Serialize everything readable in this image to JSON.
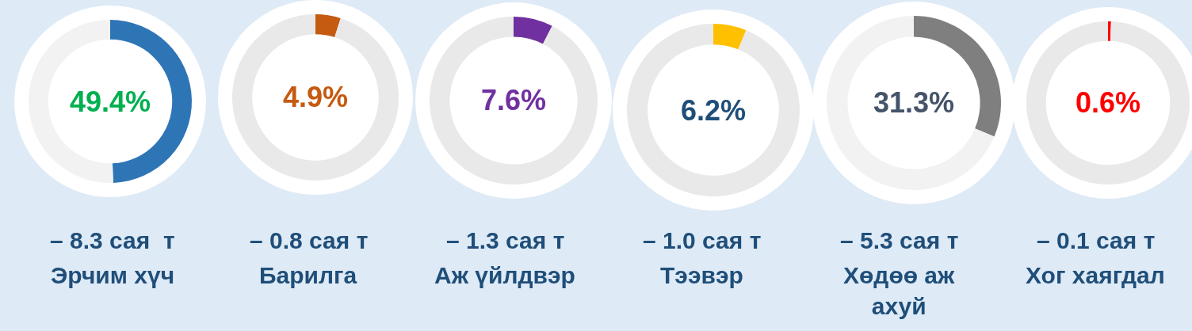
{
  "chart_data": [
    {
      "type": "donut",
      "categories": [
        null,
        null
      ],
      "values": [
        49.4,
        50.6
      ],
      "colors": [
        "#2e75b6",
        "#f2f2f2"
      ],
      "value_labels": [
        "49.4%",
        null
      ],
      "annotations": [
        "– 8.3 сая  т"
      ],
      "xlabel": "Эрчим хүч"
    },
    {
      "type": "donut",
      "categories": [
        null,
        null
      ],
      "values": [
        4.9,
        95.1
      ],
      "colors": [
        "#c55a11",
        "#e9e9e9"
      ],
      "value_labels": [
        "4.9%",
        null
      ],
      "annotations": [
        "– 0.8 сая т"
      ],
      "xlabel": "Барилга"
    },
    {
      "type": "donut",
      "categories": [
        null,
        null
      ],
      "values": [
        7.6,
        92.4
      ],
      "colors": [
        "#7030a0",
        "#e9e9e9"
      ],
      "value_labels": [
        "7.6%",
        null
      ],
      "annotations": [
        "– 1.3 сая т"
      ],
      "xlabel": "Аж үйлдвэр"
    },
    {
      "type": "donut",
      "categories": [
        null,
        null
      ],
      "values": [
        6.2,
        93.8
      ],
      "colors": [
        "#ffc000",
        "#e9e9e9"
      ],
      "value_labels": [
        "6.2%",
        null
      ],
      "annotations": [
        "– 1.0 сая т"
      ],
      "xlabel": "Тээвэр"
    },
    {
      "type": "donut",
      "categories": [
        null,
        null
      ],
      "values": [
        31.3,
        68.7
      ],
      "colors": [
        "#7f7f7f",
        "#f2f2f2"
      ],
      "value_labels": [
        "31.3%",
        null
      ],
      "annotations": [
        "– 5.3 сая т"
      ],
      "xlabel": "Хөдөө аж ахуй"
    },
    {
      "type": "donut",
      "categories": [
        null,
        null
      ],
      "values": [
        0.6,
        99.4
      ],
      "colors": [
        "#ff0000",
        "#e9e9e9"
      ],
      "value_labels": [
        "0.6%",
        null
      ],
      "annotations": [
        "– 0.1 сая т"
      ],
      "xlabel": "Хог хаягдал"
    }
  ]
}
